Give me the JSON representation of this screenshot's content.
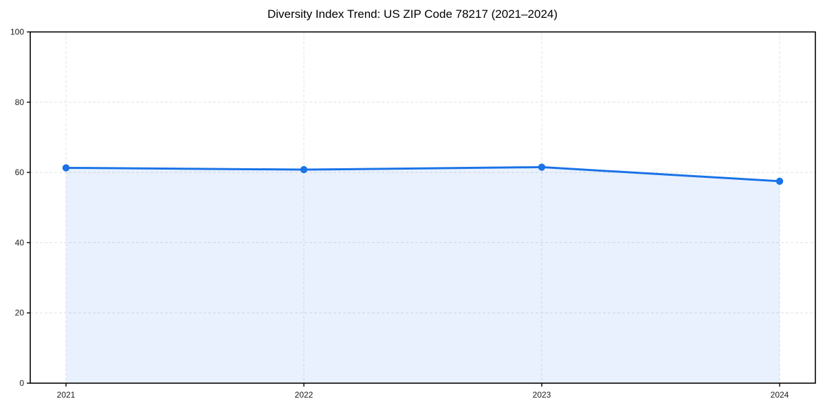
{
  "chart_data": {
    "type": "area",
    "title": "Diversity Index Trend: US ZIP Code 78217 (2021–2024)",
    "categories": [
      "2021",
      "2022",
      "2023",
      "2024"
    ],
    "series": [
      {
        "name": "Diversity Index",
        "values": [
          61.3,
          60.8,
          61.5,
          57.5
        ]
      }
    ],
    "xlabel": "",
    "ylabel": "",
    "ylim": [
      0,
      100
    ],
    "yticks": [
      0,
      20,
      40,
      60,
      80,
      100
    ],
    "grid": true,
    "grid_style": "dashed",
    "legend": false,
    "colors": {
      "line": "#1a73e8",
      "marker": "#1a73e8",
      "area_fill": "rgba(26,115,232,0.10)",
      "grid": "#e0e0e0",
      "spine": "#000000",
      "tick_label": "#1a1a1a",
      "background": "#ffffff"
    }
  }
}
